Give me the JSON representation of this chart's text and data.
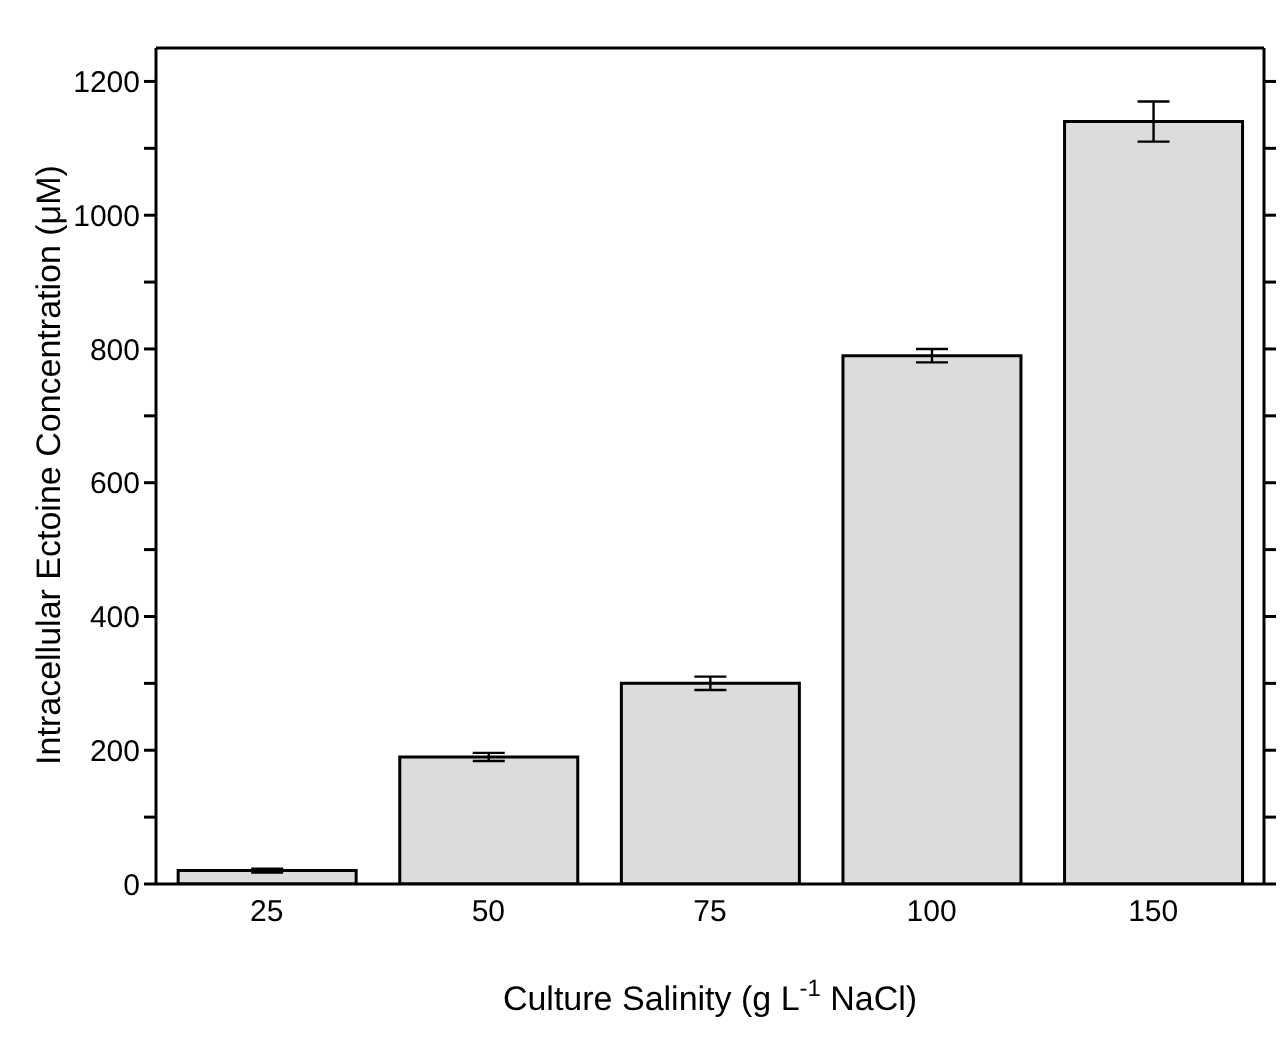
{
  "chart_data": {
    "type": "bar",
    "xlabel": "Culture Salinity (g L$^{-1}$ NaCl)",
    "ylabel": "Intracellular Ectoine Concentration (μM)",
    "categories": [
      "25",
      "50",
      "75",
      "100",
      "150"
    ],
    "values": [
      20,
      190,
      300,
      790,
      1140
    ],
    "errors": [
      3,
      6,
      10,
      10,
      30
    ],
    "color": "#dcdcdc",
    "ylim": [
      0,
      1250
    ],
    "yticks": [
      0,
      {
        "value": 100,
        "label": null
      },
      200,
      {
        "value": 300,
        "label": null
      },
      400,
      {
        "value": 500,
        "label": null
      },
      600,
      {
        "value": 700,
        "label": null
      },
      800,
      {
        "value": 900,
        "label": null
      },
      1000,
      {
        "value": 1100,
        "label": null
      },
      1200
    ],
    "grid": false,
    "legend": false
  }
}
